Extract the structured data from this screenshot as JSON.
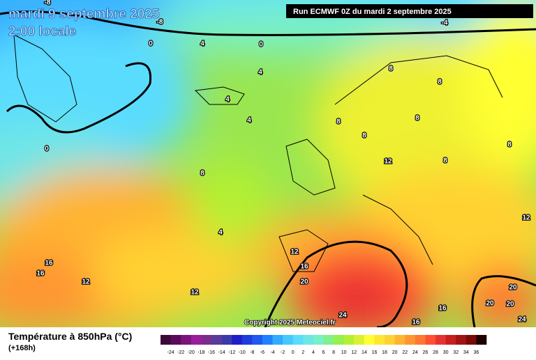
{
  "header": {
    "date": "mardi 9 septembre 2025",
    "time": "2:00 locale",
    "run": "Run ECMWF 0Z du mardi 2 septembre 2025"
  },
  "map": {
    "contour_labels": [
      -8,
      -8,
      -4,
      0,
      4,
      0,
      4,
      8,
      8,
      4,
      4,
      8,
      8,
      8,
      8,
      0,
      12,
      8,
      8,
      12,
      4,
      12,
      16,
      16,
      16,
      12,
      20,
      12,
      20,
      20,
      20,
      16,
      24,
      16,
      24
    ],
    "copyright": "Copyright 2025 Meteociel.fr"
  },
  "legend": {
    "title": "Température à 850hPa (°C)",
    "lead": "(+168h)",
    "scale": {
      "labels": [
        -24,
        -22,
        -20,
        -18,
        -16,
        -14,
        -12,
        -10,
        -8,
        -6,
        -4,
        -2,
        0,
        2,
        4,
        6,
        8,
        10,
        12,
        14,
        16,
        18,
        20,
        22,
        24,
        26,
        28,
        30,
        32,
        34,
        36
      ],
      "colors": [
        "#3a0a3a",
        "#5a0a5a",
        "#7a147a",
        "#9a1e9a",
        "#7a2e8a",
        "#5a3a9a",
        "#3a3aaa",
        "#1e1ec8",
        "#1e3cdc",
        "#1e5af0",
        "#1e82ff",
        "#32aaff",
        "#46c8ff",
        "#5adcff",
        "#6ee6e6",
        "#78f0c8",
        "#82f08c",
        "#96f050",
        "#b4f032",
        "#dcf032",
        "#ffff32",
        "#ffe632",
        "#ffd232",
        "#ffb432",
        "#ff9632",
        "#ff7832",
        "#ff5032",
        "#e63232",
        "#c81e1e",
        "#a01414",
        "#780a0a",
        "#1e0000"
      ]
    }
  }
}
